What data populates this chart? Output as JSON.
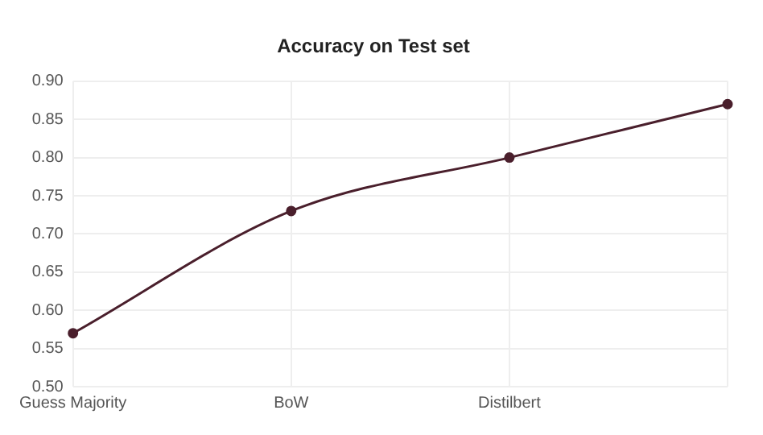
{
  "chart_data": {
    "type": "line",
    "title": "Accuracy on Test set",
    "categories": [
      "Guess Majority",
      "BoW",
      "Distilbert",
      null
    ],
    "series": [
      {
        "color": "#4a1f2c",
        "values": [
          0.57,
          0.73,
          0.8,
          0.87
        ]
      }
    ],
    "ylim": [
      0.5,
      0.9
    ],
    "yticks": [
      {
        "value": 0.5,
        "label": "0.50"
      },
      {
        "value": 0.55,
        "label": "0.55"
      },
      {
        "value": 0.6,
        "label": "0.60"
      },
      {
        "value": 0.65,
        "label": "0.65"
      },
      {
        "value": 0.7,
        "label": "0.70"
      },
      {
        "value": 0.75,
        "label": "0.75"
      },
      {
        "value": 0.8,
        "label": "0.80"
      },
      {
        "value": 0.85,
        "label": "0.85"
      },
      {
        "value": 0.9,
        "label": "0.90"
      }
    ],
    "grid": true,
    "marker": "circle",
    "line_style": "solid",
    "legend": false
  }
}
